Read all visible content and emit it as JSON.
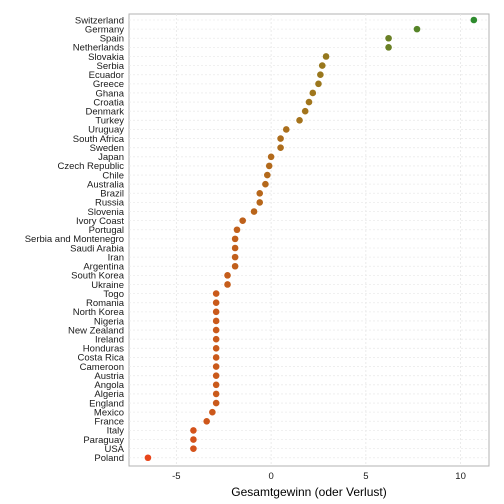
{
  "chart_data": {
    "type": "scatter",
    "xlabel": "Gesamtgewinn (oder Verlust)",
    "ylabel": "",
    "xlim": [
      -7.5,
      11.5
    ],
    "x_ticks": [
      -5,
      0,
      5,
      10
    ],
    "grid": true,
    "colors": {
      "high": "#2e8b2e",
      "mid": "#a0761c",
      "low": "#e8451a"
    },
    "categories": [
      "Switzerland",
      "Germany",
      "Spain",
      "Netherlands",
      "Slovakia",
      "Serbia",
      "Ecuador",
      "Greece",
      "Ghana",
      "Croatia",
      "Denmark",
      "Turkey",
      "Uruguay",
      "South Africa",
      "Sweden",
      "Japan",
      "Czech Republic",
      "Chile",
      "Australia",
      "Brazil",
      "Russia",
      "Slovenia",
      "Ivory Coast",
      "Portugal",
      "Serbia and Montenegro",
      "Saudi Arabia",
      "Iran",
      "Argentina",
      "South Korea",
      "Ukraine",
      "Togo",
      "Romania",
      "North Korea",
      "Nigeria",
      "New Zealand",
      "Ireland",
      "Honduras",
      "Costa Rica",
      "Cameroon",
      "Austria",
      "Angola",
      "Algeria",
      "England",
      "Mexico",
      "France",
      "Italy",
      "Paraguay",
      "USA",
      "Poland"
    ],
    "values": [
      10.7,
      7.7,
      6.2,
      6.2,
      2.9,
      2.7,
      2.6,
      2.5,
      2.2,
      2.0,
      1.8,
      1.5,
      0.8,
      0.5,
      0.5,
      0.0,
      -0.1,
      -0.2,
      -0.3,
      -0.6,
      -0.6,
      -0.9,
      -1.5,
      -1.8,
      -1.9,
      -1.9,
      -1.9,
      -1.9,
      -2.3,
      -2.3,
      -2.9,
      -2.9,
      -2.9,
      -2.9,
      -2.9,
      -2.9,
      -2.9,
      -2.9,
      -2.9,
      -2.9,
      -2.9,
      -2.9,
      -2.9,
      -3.1,
      -3.4,
      -4.1,
      -4.1,
      -4.1,
      -6.5
    ]
  }
}
